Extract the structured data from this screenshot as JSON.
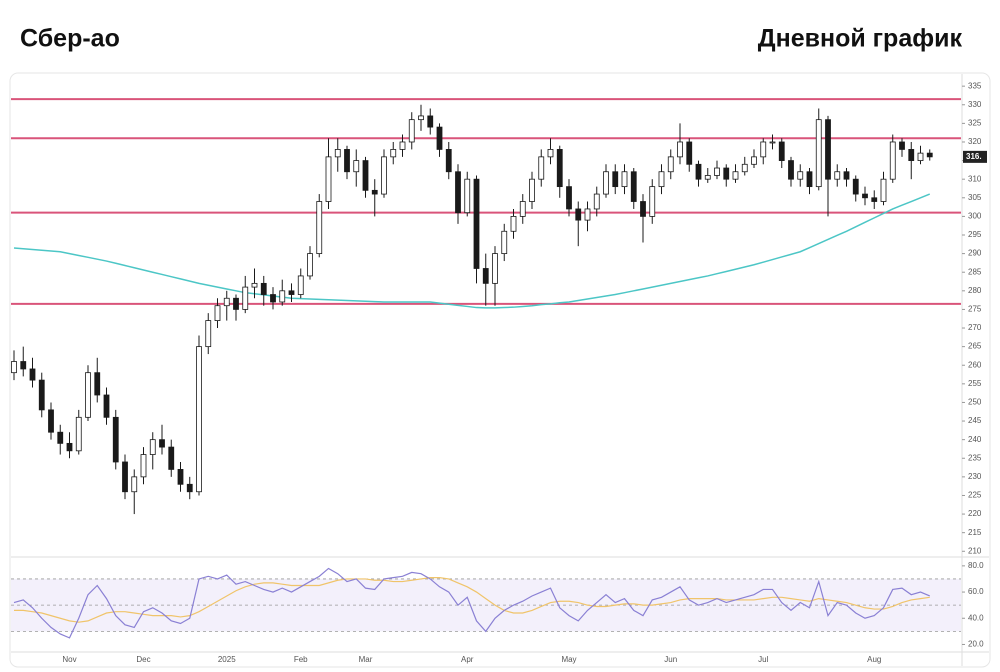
{
  "header": {
    "left": "Сбер-ао",
    "right": "Дневной график"
  },
  "chart_data": [
    {
      "type": "candlestick",
      "categories": [
        null,
        null,
        null,
        null,
        null,
        null,
        "Nov",
        null,
        null,
        null,
        null,
        null,
        null,
        null,
        "Dec",
        null,
        null,
        null,
        null,
        null,
        null,
        null,
        null,
        "2025",
        null,
        null,
        null,
        null,
        null,
        null,
        null,
        "Feb",
        null,
        null,
        null,
        null,
        null,
        null,
        "Mar",
        null,
        null,
        null,
        null,
        null,
        null,
        null,
        null,
        null,
        null,
        "Apr",
        null,
        null,
        null,
        null,
        null,
        null,
        null,
        null,
        null,
        null,
        "May",
        null,
        null,
        null,
        null,
        null,
        null,
        null,
        null,
        null,
        null,
        "Jun",
        null,
        null,
        null,
        null,
        null,
        null,
        null,
        null,
        null,
        "Jul",
        null,
        null,
        null,
        null,
        null,
        null,
        null,
        null,
        null,
        null,
        null,
        "Aug",
        null,
        null,
        null,
        null,
        null,
        null
      ],
      "ohlc": [
        [
          258,
          264,
          256,
          261
        ],
        [
          261,
          265,
          257,
          259
        ],
        [
          259,
          262,
          254,
          256
        ],
        [
          256,
          258,
          246,
          248
        ],
        [
          248,
          250,
          240,
          242
        ],
        [
          242,
          244,
          236,
          239
        ],
        [
          239,
          242,
          235,
          237
        ],
        [
          237,
          248,
          236,
          246
        ],
        [
          246,
          260,
          245,
          258
        ],
        [
          258,
          262,
          250,
          252
        ],
        [
          252,
          254,
          244,
          246
        ],
        [
          246,
          248,
          232,
          234
        ],
        [
          234,
          236,
          224,
          226
        ],
        [
          226,
          232,
          220,
          230
        ],
        [
          230,
          238,
          228,
          236
        ],
        [
          236,
          242,
          232,
          240
        ],
        [
          240,
          244,
          236,
          238
        ],
        [
          238,
          240,
          230,
          232
        ],
        [
          232,
          234,
          226,
          228
        ],
        [
          228,
          230,
          224,
          226
        ],
        [
          226,
          268,
          225,
          265
        ],
        [
          265,
          274,
          263,
          272
        ],
        [
          272,
          278,
          270,
          276
        ],
        [
          276,
          280,
          272,
          278
        ],
        [
          278,
          279,
          272,
          275
        ],
        [
          275,
          284,
          274,
          281
        ],
        [
          281,
          286,
          278,
          282
        ],
        [
          282,
          284,
          276,
          279
        ],
        [
          279,
          281,
          275,
          277
        ],
        [
          277,
          283,
          276,
          280
        ],
        [
          280,
          282,
          277,
          279
        ],
        [
          279,
          286,
          278,
          284
        ],
        [
          284,
          292,
          283,
          290
        ],
        [
          290,
          306,
          289,
          304
        ],
        [
          304,
          321,
          302,
          316
        ],
        [
          316,
          321,
          312,
          318
        ],
        [
          318,
          319,
          310,
          312
        ],
        [
          312,
          318,
          308,
          315
        ],
        [
          315,
          316,
          305,
          307
        ],
        [
          307,
          310,
          300,
          306
        ],
        [
          306,
          318,
          305,
          316
        ],
        [
          316,
          320,
          314,
          318
        ],
        [
          318,
          322,
          316,
          320
        ],
        [
          320,
          328,
          318,
          326
        ],
        [
          326,
          330,
          323,
          327
        ],
        [
          327,
          329,
          322,
          324
        ],
        [
          324,
          325,
          316,
          318
        ],
        [
          318,
          320,
          310,
          312
        ],
        [
          312,
          314,
          298,
          301
        ],
        [
          301,
          312,
          300,
          310
        ],
        [
          310,
          311,
          282,
          286
        ],
        [
          286,
          290,
          276,
          282
        ],
        [
          282,
          292,
          276,
          290
        ],
        [
          290,
          298,
          288,
          296
        ],
        [
          296,
          302,
          294,
          300
        ],
        [
          300,
          306,
          298,
          304
        ],
        [
          304,
          312,
          302,
          310
        ],
        [
          310,
          318,
          308,
          316
        ],
        [
          316,
          321,
          314,
          318
        ],
        [
          318,
          319,
          305,
          308
        ],
        [
          308,
          310,
          300,
          302
        ],
        [
          302,
          304,
          292,
          299
        ],
        [
          299,
          304,
          296,
          302
        ],
        [
          302,
          308,
          300,
          306
        ],
        [
          306,
          314,
          305,
          312
        ],
        [
          312,
          314,
          306,
          308
        ],
        [
          308,
          314,
          306,
          312
        ],
        [
          312,
          313,
          302,
          304
        ],
        [
          304,
          306,
          293,
          300
        ],
        [
          300,
          310,
          298,
          308
        ],
        [
          308,
          314,
          306,
          312
        ],
        [
          312,
          318,
          310,
          316
        ],
        [
          316,
          325,
          314,
          320
        ],
        [
          320,
          321,
          312,
          314
        ],
        [
          314,
          315,
          308,
          310
        ],
        [
          310,
          313,
          309,
          311
        ],
        [
          311,
          315,
          310,
          313
        ],
        [
          313,
          314,
          308,
          310
        ],
        [
          310,
          314,
          309,
          312
        ],
        [
          312,
          316,
          311,
          314
        ],
        [
          314,
          318,
          313,
          316
        ],
        [
          316,
          321,
          314,
          320
        ],
        [
          320,
          322,
          318,
          320
        ],
        [
          320,
          321,
          313,
          315
        ],
        [
          315,
          316,
          308,
          310
        ],
        [
          310,
          314,
          308,
          312
        ],
        [
          312,
          313,
          306,
          308
        ],
        [
          308,
          329,
          307,
          326
        ],
        [
          326,
          327,
          300,
          310
        ],
        [
          310,
          314,
          308,
          312
        ],
        [
          312,
          313,
          308,
          310
        ],
        [
          310,
          311,
          304,
          306
        ],
        [
          306,
          308,
          303,
          305
        ],
        [
          305,
          307,
          302,
          304
        ],
        [
          304,
          312,
          303,
          310
        ],
        [
          310,
          322,
          309,
          320
        ],
        [
          320,
          321,
          316,
          318
        ],
        [
          318,
          320,
          310,
          315
        ],
        [
          315,
          319,
          314,
          317
        ],
        [
          317,
          318,
          315,
          316
        ]
      ],
      "up_color": "#ffffff",
      "down_color": "#1a1a1a",
      "edge_color": "#1a1a1a",
      "moving_average": {
        "color": "#4cc6c6",
        "values": [
          291.5,
          291.3,
          291.1,
          290.9,
          290.7,
          290.5,
          290,
          289.5,
          289,
          288.5,
          288,
          287.4,
          286.8,
          286.2,
          285.6,
          285,
          284.4,
          283.8,
          283.2,
          282.6,
          282,
          281.5,
          281,
          280.5,
          280,
          279.5,
          279.2,
          278.9,
          278.6,
          278.3,
          278,
          277.9,
          277.8,
          277.7,
          277.6,
          277.5,
          277.4,
          277.3,
          277.2,
          277.1,
          277,
          277,
          277,
          277,
          277,
          277,
          276.7,
          276.4,
          276.1,
          275.8,
          275.5,
          275.4,
          275.4,
          275.5,
          275.6,
          275.8,
          276,
          276.3,
          276.5,
          276.8,
          277,
          277.4,
          277.8,
          278.2,
          278.6,
          279,
          279.5,
          280,
          280.5,
          281,
          281.5,
          282,
          282.5,
          283,
          283.5,
          284,
          284.6,
          285.2,
          285.8,
          286.4,
          287,
          287.7,
          288.4,
          289.1,
          289.8,
          290.5,
          291.6,
          292.7,
          293.8,
          294.9,
          296,
          297.2,
          298.4,
          299.6,
          300.8,
          302,
          303,
          304,
          305,
          306
        ]
      },
      "hlines": [
        331.5,
        321,
        301,
        276.5
      ],
      "hline_color": "#d9547a",
      "last": {
        "value": 316,
        "label": "316."
      },
      "ylim": [
        209,
        338
      ],
      "yticks": [
        210,
        215,
        220,
        225,
        230,
        235,
        240,
        245,
        250,
        255,
        260,
        265,
        270,
        275,
        280,
        285,
        290,
        295,
        300,
        305,
        310,
        315,
        320,
        325,
        330,
        335
      ]
    },
    {
      "type": "line",
      "series": [
        {
          "color": "#8a80d4",
          "values": [
            52,
            54,
            48,
            40,
            33,
            28,
            25,
            40,
            58,
            65,
            55,
            42,
            35,
            33,
            45,
            48,
            44,
            38,
            36,
            40,
            70,
            72,
            70,
            73,
            66,
            68,
            65,
            62,
            60,
            63,
            60,
            64,
            68,
            72,
            78,
            74,
            68,
            70,
            63,
            62,
            70,
            71,
            72,
            75,
            74,
            70,
            64,
            60,
            50,
            56,
            38,
            30,
            40,
            46,
            50,
            53,
            57,
            60,
            63,
            48,
            42,
            38,
            46,
            52,
            58,
            52,
            55,
            46,
            42,
            54,
            56,
            60,
            64,
            54,
            50,
            52,
            55,
            52,
            54,
            56,
            58,
            62,
            62,
            52,
            46,
            52,
            48,
            68,
            42,
            52,
            50,
            44,
            40,
            42,
            48,
            62,
            63,
            58,
            60,
            57
          ]
        },
        {
          "color": "#f0c46a",
          "values": [
            46,
            46,
            45,
            44,
            42,
            40,
            38,
            37,
            38,
            41,
            44,
            45,
            45,
            44,
            43,
            42,
            42,
            42,
            41,
            42,
            45,
            49,
            53,
            57,
            61,
            64,
            66,
            67,
            67,
            66,
            65,
            65,
            65,
            65,
            67,
            69,
            70,
            70,
            70,
            69,
            69,
            68,
            68,
            69,
            70,
            71,
            71,
            70,
            67,
            64,
            60,
            55,
            50,
            46,
            44,
            44,
            46,
            49,
            52,
            53,
            53,
            52,
            50,
            49,
            49,
            50,
            51,
            51,
            50,
            50,
            51,
            52,
            54,
            55,
            55,
            55,
            55,
            54,
            54,
            54,
            54,
            55,
            56,
            56,
            55,
            54,
            53,
            55,
            54,
            53,
            52,
            50,
            48,
            47,
            47,
            49,
            52,
            54,
            55,
            56
          ]
        }
      ],
      "levels": [
        30,
        50,
        70
      ],
      "ylim": [
        15,
        86
      ],
      "yticks": [
        {
          "value": 20,
          "label": "20.0"
        },
        {
          "value": 40,
          "label": "40.0"
        },
        {
          "value": 60,
          "label": "60.0"
        },
        {
          "value": 80,
          "label": "80.0"
        }
      ]
    }
  ]
}
